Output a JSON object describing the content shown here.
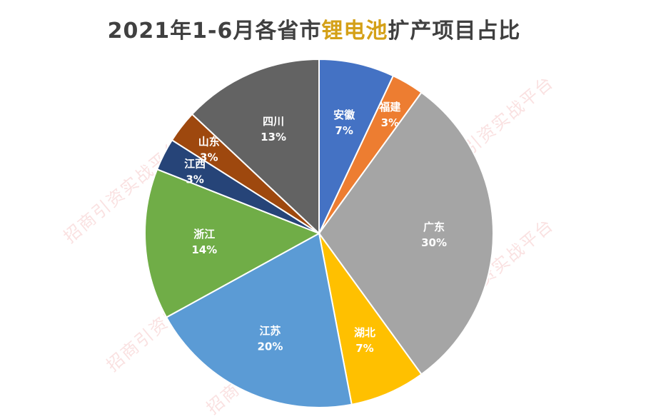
{
  "title": {
    "prefix": "2021年1-6月各省市",
    "highlight": "锂电池",
    "suffix": "扩产项目占比"
  },
  "watermark": "招商引资实战平台",
  "chart_data": {
    "type": "pie",
    "title": "2021年1-6月各省市锂电池扩产项目占比",
    "start_angle_deg": 0,
    "direction": "clockwise",
    "legend": "none",
    "slices": [
      {
        "name": "安徽",
        "value": 7,
        "label": "7%",
        "color": "#4472c4"
      },
      {
        "name": "福建",
        "value": 3,
        "label": "3%",
        "color": "#ed7d31"
      },
      {
        "name": "广东",
        "value": 30,
        "label": "30%",
        "color": "#a5a5a5"
      },
      {
        "name": "湖北",
        "value": 7,
        "label": "7%",
        "color": "#ffc000"
      },
      {
        "name": "江苏",
        "value": 20,
        "label": "20%",
        "color": "#5b9bd5"
      },
      {
        "name": "浙江",
        "value": 14,
        "label": "14%",
        "color": "#70ad47"
      },
      {
        "name": "江西",
        "value": 3,
        "label": "3%",
        "color": "#264478"
      },
      {
        "name": "山东",
        "value": 3,
        "label": "3%",
        "color": "#9e480e"
      },
      {
        "name": "四川",
        "value": 13,
        "label": "13%",
        "color": "#636363"
      }
    ]
  }
}
